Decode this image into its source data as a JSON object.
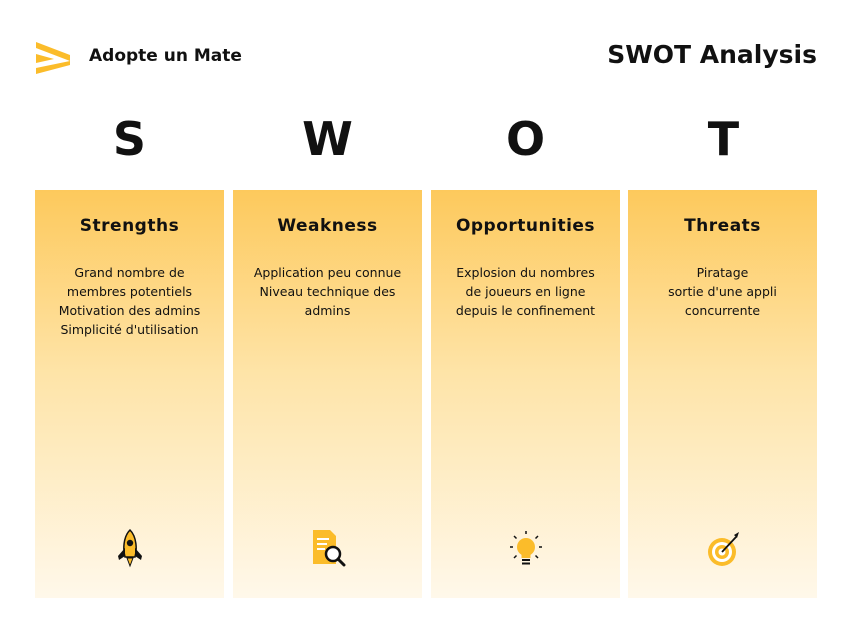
{
  "header": {
    "brand": "Adopte un Mate",
    "title": "SWOT Analysis"
  },
  "colors": {
    "accent": "#FBBC2A",
    "panel_top": "#FDC95C",
    "panel_bottom": "#FFF8EA",
    "text": "#111111"
  },
  "swot": [
    {
      "letter": "S",
      "heading": "Strengths",
      "lines": [
        "Grand nombre de",
        "membres potentiels",
        "Motivation des admins",
        "Simplicité d'utilisation"
      ],
      "icon": "rocket-icon"
    },
    {
      "letter": "W",
      "heading": "Weakness",
      "lines": [
        "Application peu connue",
        "Niveau technique des",
        "admins"
      ],
      "icon": "document-search-icon"
    },
    {
      "letter": "O",
      "heading": "Opportunities",
      "lines": [
        "Explosion du nombres",
        "de joueurs en ligne",
        "depuis le confinement"
      ],
      "icon": "lightbulb-icon"
    },
    {
      "letter": "T",
      "heading": "Threats",
      "lines": [
        "Piratage",
        "sortie d'une appli",
        "concurrente"
      ],
      "icon": "target-icon"
    }
  ]
}
